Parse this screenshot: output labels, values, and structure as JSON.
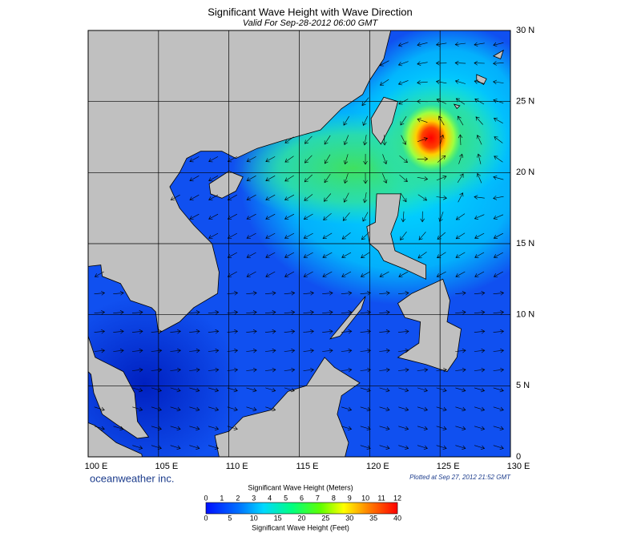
{
  "header": {
    "title": "Significant Wave Height with Wave Direction",
    "subtitle": "Valid For Sep-28-2012 06:00 GMT"
  },
  "map": {
    "lat_labels": [
      "30 N",
      "25 N",
      "20 N",
      "15 N",
      "10 N",
      "5 N",
      "0"
    ],
    "lon_labels": [
      "100 E",
      "105 E",
      "110 E",
      "115 E",
      "120 E",
      "125 E",
      "130 E"
    ]
  },
  "footer": {
    "brand": "oceanweather inc.",
    "plotted": "Plotted at Sep 27, 2012 21:52 GMT"
  },
  "legend": {
    "meters_title": "Significant Wave Height (Meters)",
    "meters_ticks": [
      0,
      1,
      2,
      3,
      4,
      5,
      6,
      7,
      8,
      9,
      10,
      11,
      12
    ],
    "feet_ticks": [
      0,
      5,
      10,
      15,
      20,
      25,
      30,
      35,
      40
    ],
    "feet_title": "Significant Wave Height (Feet)"
  }
}
